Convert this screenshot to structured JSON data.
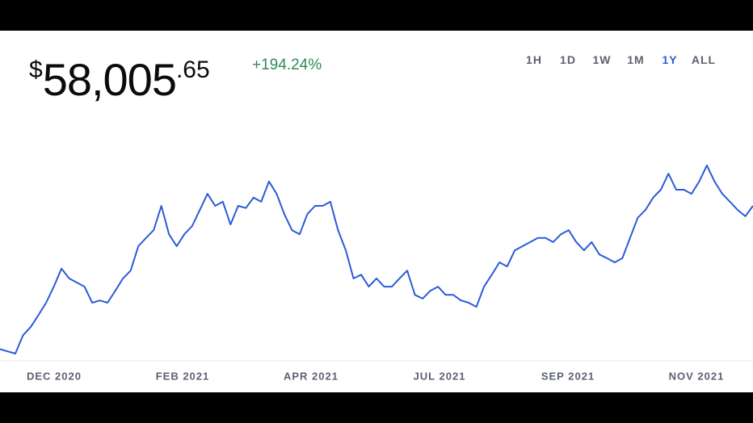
{
  "price": {
    "currency": "$",
    "whole": "58,005",
    "cents": ".65"
  },
  "change": "+194.24%",
  "ranges": [
    "1H",
    "1D",
    "1W",
    "1M",
    "1Y",
    "ALL"
  ],
  "selected_range": 4,
  "chart_data": {
    "type": "line",
    "color": "#2a5bd7",
    "x_labels": [
      "DEC 2020",
      "FEB 2021",
      "APR 2021",
      "JUL 2021",
      "SEP 2021",
      "NOV 2021"
    ],
    "values": [
      19700,
      19100,
      18500,
      23400,
      25600,
      28800,
      32100,
      36400,
      41200,
      38600,
      37500,
      36400,
      32100,
      32700,
      32100,
      35300,
      38600,
      40700,
      47200,
      49400,
      51500,
      58000,
      50400,
      47200,
      50400,
      52600,
      56900,
      61200,
      58000,
      59100,
      53000,
      58000,
      57400,
      60200,
      59100,
      64500,
      61200,
      55800,
      51500,
      50400,
      55800,
      58000,
      58000,
      59100,
      51500,
      46100,
      38600,
      39600,
      36400,
      38600,
      36400,
      36400,
      38600,
      40700,
      34200,
      33200,
      35300,
      36400,
      34200,
      34200,
      32700,
      32100,
      31000,
      36400,
      39600,
      42900,
      41800,
      46100,
      47200,
      48300,
      49400,
      49400,
      48300,
      50400,
      51500,
      48300,
      46100,
      48300,
      45000,
      44000,
      42900,
      44000,
      49400,
      54800,
      56900,
      60200,
      62300,
      66600,
      62300,
      62300,
      61200,
      64500,
      68800,
      64500,
      61200,
      59100,
      56900,
      55200,
      58000
    ],
    "ylim": [
      17000,
      80000
    ],
    "grid": false
  }
}
